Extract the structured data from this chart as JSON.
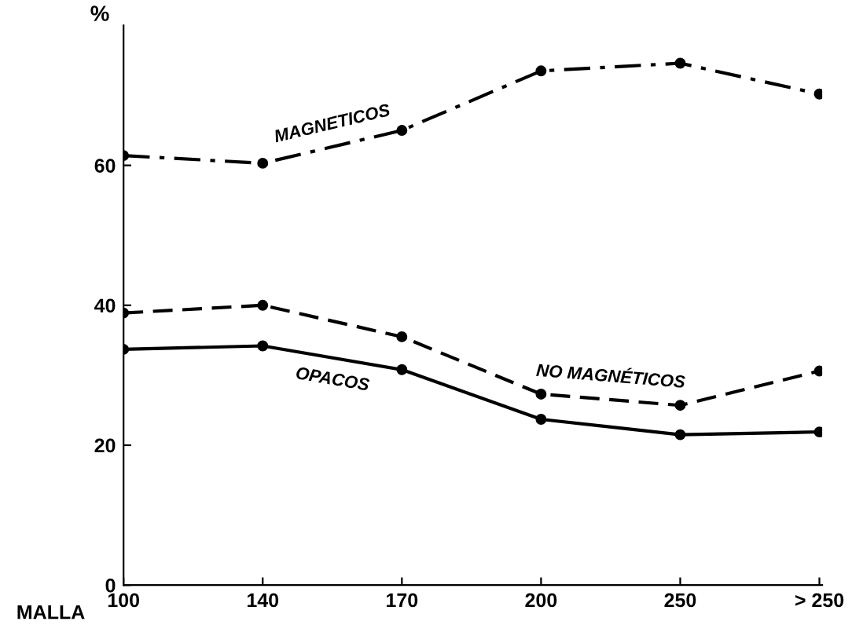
{
  "chart_data": {
    "type": "line",
    "ylabel": "%",
    "xlabel": "MALLA",
    "categories": [
      "100",
      "140",
      "170",
      "200",
      "250",
      "> 250"
    ],
    "ylim": [
      0,
      80
    ],
    "yticks": [
      0,
      20,
      40,
      60
    ],
    "marker": "circle",
    "grid": false,
    "legend": false,
    "series": [
      {
        "name": "MAGNETICOS",
        "color": "#000000",
        "line_style": "dashdot",
        "values": [
          61.4,
          60.3,
          65,
          73.5,
          74.6,
          70.2
        ]
      },
      {
        "name": "NO MAGNÉTICOS",
        "color": "#000000",
        "line_style": "dashed",
        "values": [
          38.9,
          40,
          35.5,
          27.3,
          25.7,
          30.6
        ]
      },
      {
        "name": "OPACOS",
        "color": "#000000",
        "line_style": "solid",
        "values": [
          33.7,
          34.2,
          30.8,
          23.7,
          21.5,
          21.9
        ]
      }
    ]
  }
}
